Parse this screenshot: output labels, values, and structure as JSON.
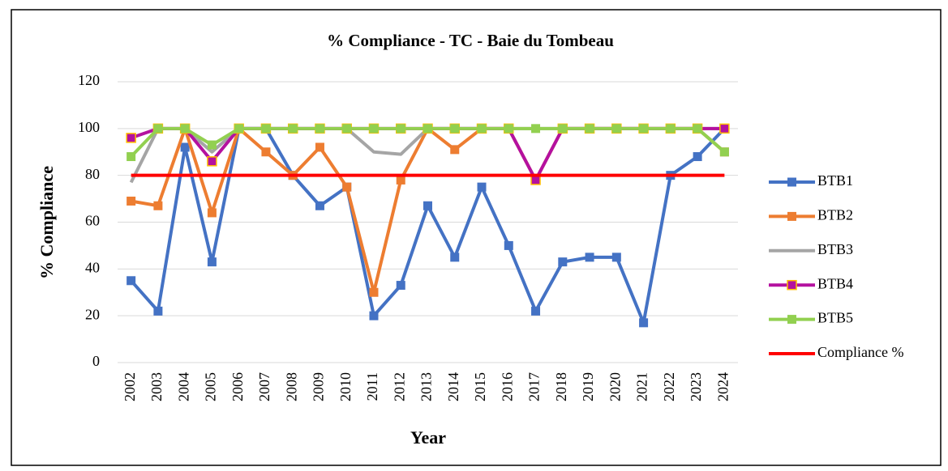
{
  "chart_data": {
    "type": "line",
    "title": "% Compliance - TC - Baie du Tombeau",
    "y_label": "% Compliance",
    "x_label": "Year",
    "categories": [
      "2002",
      "2003",
      "2004",
      "2005",
      "2006",
      "2007",
      "2008",
      "2009",
      "2010",
      "2011",
      "2012",
      "2013",
      "2014",
      "2015",
      "2016",
      "2017",
      "2018",
      "2019",
      "2020",
      "2021",
      "2022",
      "2023",
      "2024"
    ],
    "ylim": [
      0,
      120
    ],
    "yticks": [
      0,
      20,
      40,
      60,
      80,
      100,
      120
    ],
    "grid": true,
    "legend": "right",
    "series": [
      {
        "name": "BTB1",
        "color": "#4472c4",
        "marker": true,
        "values": [
          35,
          22,
          92,
          43,
          100,
          100,
          80,
          67,
          75,
          20,
          33,
          67,
          45,
          75,
          50,
          22,
          43,
          45,
          45,
          17,
          80,
          88,
          100
        ]
      },
      {
        "name": "BTB2",
        "color": "#ed7d31",
        "marker": true,
        "values": [
          69,
          67,
          100,
          64,
          100,
          90,
          80,
          92,
          75,
          30,
          78,
          100,
          91,
          100,
          100,
          78,
          100,
          100,
          100,
          100,
          100,
          100,
          90
        ]
      },
      {
        "name": "BTB3",
        "color": "#a5a5a5",
        "marker": false,
        "values": [
          77,
          100,
          100,
          90,
          100,
          100,
          100,
          100,
          100,
          90,
          89,
          100,
          100,
          100,
          100,
          100,
          100,
          100,
          100,
          100,
          100,
          100,
          100
        ]
      },
      {
        "name": "BTB4",
        "color": "#b4119f",
        "marker": true,
        "marker_edge": "#ffc000",
        "values": [
          96,
          100,
          100,
          86,
          100,
          100,
          100,
          100,
          100,
          100,
          100,
          100,
          100,
          100,
          100,
          78,
          100,
          100,
          100,
          100,
          100,
          100,
          100
        ]
      },
      {
        "name": "BTB5",
        "color": "#92d050",
        "marker": true,
        "values": [
          88,
          100,
          100,
          93,
          100,
          100,
          100,
          100,
          100,
          100,
          100,
          100,
          100,
          100,
          100,
          100,
          100,
          100,
          100,
          100,
          100,
          100,
          90
        ]
      },
      {
        "name": "Compliance %",
        "color": "#ff0000",
        "marker": false,
        "values": [
          80,
          80,
          80,
          80,
          80,
          80,
          80,
          80,
          80,
          80,
          80,
          80,
          80,
          80,
          80,
          80,
          80,
          80,
          80,
          80,
          80,
          80,
          80
        ]
      }
    ]
  }
}
